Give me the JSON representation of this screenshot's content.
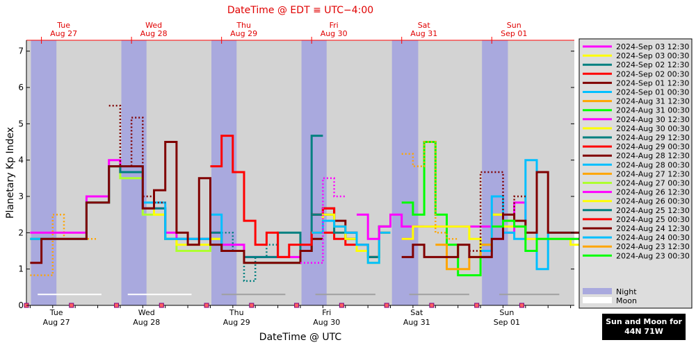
{
  "page": {
    "top_title": "DateTime @ EDT ≡ UTC−4:00",
    "x_axis_label": "DateTime @ UTC",
    "y_axis_label": "Planetary Kp Index",
    "location_box": {
      "line1": "Sun and Moon for",
      "line2": "44N 71W"
    }
  },
  "colors": {
    "background": "#d3d3d3",
    "night": "#a9a9de",
    "moon": "#ffffff",
    "top_axis": "#ff0000",
    "series": [
      "#ff00ff",
      "#ffff00",
      "#008080",
      "#ff0000",
      "#800000",
      "#00bfff",
      "#ffa500",
      "#00ff00",
      "#adff2f"
    ]
  },
  "chart_data": {
    "type": "line",
    "title": "DateTime @ EDT ≡ UTC−4:00",
    "xlabel": "DateTime @ UTC",
    "ylabel": "Planetary Kp Index",
    "x_unit": "hours since 2024-Aug 27 00:00 UTC",
    "xlim": [
      -4.0,
      142.0
    ],
    "ylim": [
      0,
      7.3
    ],
    "y_ticks": [
      0,
      1,
      2,
      3,
      4,
      5,
      6,
      7
    ],
    "grid": false,
    "top_axis_ticks": [
      {
        "x": 0,
        "day": "Tue",
        "date": "Aug 27"
      },
      {
        "x": 24,
        "day": "Wed",
        "date": "Aug 28"
      },
      {
        "x": 48,
        "day": "Thu",
        "date": "Aug 29"
      },
      {
        "x": 72,
        "day": "Fri",
        "date": "Aug 30"
      },
      {
        "x": 96,
        "day": "Sat",
        "date": "Aug 31"
      },
      {
        "x": 120,
        "day": "Sun",
        "date": "Sep 01"
      }
    ],
    "bottom_axis_ticks": [
      {
        "x": 4,
        "day": "Tue",
        "date": "Aug 27"
      },
      {
        "x": 28,
        "day": "Wed",
        "date": "Aug 28"
      },
      {
        "x": 52,
        "day": "Thu",
        "date": "Aug 29"
      },
      {
        "x": 76,
        "day": "Fri",
        "date": "Aug 30"
      },
      {
        "x": 100,
        "day": "Sat",
        "date": "Aug 31"
      },
      {
        "x": 124,
        "day": "Sun",
        "date": "Sep 01"
      }
    ],
    "night_bands": [
      [
        -2.8,
        4.0
      ],
      [
        21.3,
        28.0
      ],
      [
        45.3,
        52.0
      ],
      [
        69.3,
        76.0
      ],
      [
        93.4,
        100.4
      ],
      [
        117.4,
        124.3
      ]
    ],
    "moon_bars": [
      [
        -1.0,
        16.0
      ],
      [
        23.0,
        40.0
      ],
      [
        48.0,
        65.0
      ],
      [
        73.0,
        89.0
      ],
      [
        98.0,
        114.0
      ],
      [
        122.0,
        138.0
      ]
    ],
    "legend": [
      {
        "label": "2024-Sep 03 12:30",
        "color": "#ff00ff"
      },
      {
        "label": "2024-Sep 03 00:30",
        "color": "#ffff00"
      },
      {
        "label": "2024-Sep 02 12:30",
        "color": "#008080"
      },
      {
        "label": "2024-Sep 02 00:30",
        "color": "#ff0000"
      },
      {
        "label": "2024-Sep 01 12:30",
        "color": "#800000"
      },
      {
        "label": "2024-Sep 01 00:30",
        "color": "#00bfff"
      },
      {
        "label": "2024-Aug 31 12:30",
        "color": "#ffa500"
      },
      {
        "label": "2024-Aug 31 00:30",
        "color": "#00ff00"
      },
      {
        "label": "2024-Aug 30 12:30",
        "color": "#ff00ff"
      },
      {
        "label": "2024-Aug 30 00:30",
        "color": "#ffff00"
      },
      {
        "label": "2024-Aug 29 12:30",
        "color": "#008080"
      },
      {
        "label": "2024-Aug 29 00:30",
        "color": "#ff0000"
      },
      {
        "label": "2024-Aug 28 12:30",
        "color": "#800000"
      },
      {
        "label": "2024-Aug 28 00:30",
        "color": "#00bfff"
      },
      {
        "label": "2024-Aug 27 12:30",
        "color": "#ffa500"
      },
      {
        "label": "2024-Aug 27 00:30",
        "color": "#adff2f"
      },
      {
        "label": "2024-Aug 26 12:30",
        "color": "#ff00ff"
      },
      {
        "label": "2024-Aug 26 00:30",
        "color": "#ffff00"
      },
      {
        "label": "2024-Aug 25 12:30",
        "color": "#008080"
      },
      {
        "label": "2024-Aug 25 00:30",
        "color": "#ff0000"
      },
      {
        "label": "2024-Aug 24 12:30",
        "color": "#800000"
      },
      {
        "label": "2024-Aug 24 00:30",
        "color": "#00bfff"
      },
      {
        "label": "2024-Aug 23 12:30",
        "color": "#ffa500"
      },
      {
        "label": "2024-Aug 23 00:30",
        "color": "#00ff00"
      },
      {
        "label": "Night",
        "color": "#a9a9de"
      },
      {
        "label": "Moon",
        "color": "#ffffff"
      }
    ],
    "series": [
      {
        "color": "#ffa500",
        "dash": true,
        "x": [
          -3,
          3,
          6,
          12
        ],
        "y": [
          0.83,
          2.5,
          1.83,
          1.83
        ]
      },
      {
        "color": "#adff2f",
        "x": [
          -3,
          0,
          3,
          6,
          9,
          12,
          15,
          18,
          21,
          24,
          27,
          30,
          33,
          36,
          39,
          42,
          45,
          48,
          51,
          54,
          57,
          60,
          63,
          66,
          69,
          72
        ],
        "y": [
          1.83,
          1.83,
          1.83,
          1.83,
          1.83,
          2.83,
          2.83,
          3.83,
          3.5,
          3.5,
          2.5,
          2.5,
          1.83,
          1.5,
          1.5,
          1.5,
          1.83,
          1.5,
          1.5,
          1.17,
          1.17,
          1.17,
          1.17,
          1.17,
          1.5,
          1.83
        ]
      },
      {
        "color": "#ffff00",
        "x": [
          -3,
          0,
          3,
          6,
          9,
          12,
          15,
          18,
          21,
          24,
          27,
          30,
          33,
          36,
          39,
          42,
          45,
          48,
          51,
          54,
          57,
          60,
          63,
          66,
          69,
          72
        ],
        "y": [
          1.83,
          1.83,
          1.83,
          1.83,
          1.83,
          2.83,
          2.83,
          3.83,
          3.67,
          3.67,
          2.67,
          2.5,
          1.83,
          1.67,
          1.67,
          1.67,
          1.83,
          1.5,
          1.5,
          1.17,
          1.17,
          1.17,
          1.17,
          1.17,
          1.5,
          1.83
        ]
      },
      {
        "color": "#ff00ff",
        "x": [
          -3,
          0,
          3,
          6,
          9,
          12,
          15,
          18,
          21,
          24,
          27,
          30,
          33,
          36,
          39,
          42,
          45,
          48,
          51,
          54,
          57,
          60,
          63,
          66,
          69,
          72
        ],
        "y": [
          2.0,
          2.0,
          2.0,
          2.0,
          2.0,
          3.0,
          3.0,
          4.0,
          3.67,
          3.67,
          2.67,
          2.67,
          2.0,
          1.83,
          1.83,
          1.83,
          2.0,
          1.67,
          1.67,
          1.33,
          1.33,
          1.33,
          1.33,
          1.33,
          1.67,
          2.0
        ]
      },
      {
        "color": "#008080",
        "x": [
          -3,
          0,
          3,
          6,
          9,
          12,
          15,
          18,
          21,
          24,
          27,
          30,
          33,
          36,
          39,
          42,
          45,
          48,
          51,
          54,
          57,
          60,
          63,
          66,
          69,
          72
        ],
        "y": [
          1.83,
          1.83,
          1.83,
          1.83,
          1.83,
          2.83,
          2.83,
          3.83,
          3.67,
          3.67,
          2.67,
          2.67,
          1.83,
          1.83,
          1.83,
          1.83,
          2.0,
          1.5,
          1.5,
          1.33,
          1.33,
          1.33,
          2.0,
          2.0,
          1.5,
          4.67
        ]
      },
      {
        "color": "#008080",
        "dash": true,
        "x": [
          48,
          51,
          54,
          57,
          60
        ],
        "y": [
          2.0,
          1.5,
          0.67,
          1.33,
          1.67
        ]
      },
      {
        "color": "#00bfff",
        "x": [
          -3,
          0,
          3,
          6,
          9,
          12,
          15,
          18,
          21,
          24,
          27,
          30,
          33,
          36,
          39,
          42,
          45,
          48,
          51,
          54,
          57,
          60,
          63,
          66,
          69,
          72
        ],
        "y": [
          1.83,
          1.83,
          1.83,
          1.83,
          1.83,
          2.83,
          2.83,
          3.83,
          3.83,
          3.83,
          2.83,
          2.83,
          1.83,
          1.83,
          1.83,
          1.83,
          2.5,
          1.5,
          1.5,
          1.17,
          1.17,
          1.17,
          1.17,
          1.17,
          1.5,
          1.83
        ]
      },
      {
        "color": "#800000",
        "x": [
          -3,
          0,
          3,
          6,
          9,
          12,
          15,
          18,
          21,
          24,
          27,
          30,
          33,
          36,
          39,
          42,
          45,
          48,
          51,
          54,
          57,
          60,
          63,
          66,
          69,
          72
        ],
        "y": [
          1.17,
          1.83,
          1.83,
          1.83,
          1.83,
          2.83,
          2.83,
          3.83,
          3.83,
          3.83,
          2.67,
          3.17,
          4.5,
          2.0,
          1.67,
          3.5,
          1.67,
          1.5,
          1.5,
          1.17,
          1.17,
          1.17,
          1.17,
          1.17,
          1.5,
          1.83
        ]
      },
      {
        "color": "#800000",
        "dash": true,
        "x": [
          18,
          21,
          24,
          27,
          30
        ],
        "y": [
          5.5,
          3.83,
          5.17,
          3.0,
          2.83
        ]
      },
      {
        "color": "#ff0000",
        "x": [
          45,
          48,
          51,
          54,
          57,
          60,
          63,
          66,
          69,
          72,
          75,
          78,
          81,
          84
        ],
        "y": [
          3.83,
          4.67,
          3.67,
          2.33,
          1.67,
          2.0,
          1.33,
          1.67,
          1.67,
          2.0,
          2.0,
          1.83,
          1.67,
          1.5
        ]
      },
      {
        "color": "#800000",
        "x": [
          72,
          75,
          78,
          81,
          84,
          87,
          90
        ],
        "y": [
          2.5,
          2.67,
          2.33,
          2.0,
          1.67,
          1.33,
          2.0
        ]
      },
      {
        "color": "#ff0000",
        "x": [
          72,
          75,
          78,
          81,
          84,
          87,
          90
        ],
        "y": [
          2.5,
          2.67,
          2.17,
          1.83,
          1.5,
          1.33,
          2.17
        ]
      },
      {
        "color": "#008080",
        "x": [
          72,
          75,
          78,
          81,
          84,
          87,
          90
        ],
        "y": [
          2.5,
          2.5,
          2.0,
          1.83,
          1.5,
          1.33,
          2.17
        ]
      },
      {
        "color": "#ffff00",
        "x": [
          72,
          75,
          78,
          81,
          84,
          87,
          90
        ],
        "y": [
          2.0,
          2.5,
          2.17,
          1.83,
          1.5,
          1.17,
          2.0
        ]
      },
      {
        "color": "#00bfff",
        "x": [
          72,
          75,
          78,
          81,
          84,
          87,
          90
        ],
        "y": [
          2.0,
          2.33,
          2.17,
          2.0,
          1.67,
          1.17,
          2.0
        ]
      },
      {
        "color": "#ff00ff",
        "x": [
          84,
          87,
          90,
          93,
          96,
          99
        ],
        "y": [
          2.5,
          1.83,
          2.17,
          2.5,
          2.17,
          2.17
        ]
      },
      {
        "color": "#ff00ff",
        "dash": true,
        "x": [
          69,
          72,
          75,
          78
        ],
        "y": [
          1.17,
          1.17,
          3.5,
          3.0
        ]
      },
      {
        "color": "#00ff00",
        "x": [
          96,
          99,
          102,
          105,
          108,
          111,
          114,
          117
        ],
        "y": [
          2.83,
          2.5,
          4.5,
          2.5,
          1.67,
          0.83,
          0.83,
          1.67
        ]
      },
      {
        "color": "#ffa500",
        "dash": true,
        "x": [
          96,
          99,
          102,
          105,
          108
        ],
        "y": [
          4.17,
          3.83,
          4.5,
          2.0,
          1.83
        ]
      },
      {
        "color": "#ffa500",
        "x": [
          105,
          108,
          111,
          114,
          117,
          120,
          123
        ],
        "y": [
          1.67,
          1.0,
          1.0,
          1.33,
          1.67,
          2.5,
          2.33
        ]
      },
      {
        "color": "#800000",
        "x": [
          96,
          99,
          102,
          105,
          108,
          111,
          114,
          117
        ],
        "y": [
          1.33,
          1.67,
          1.33,
          1.33,
          1.33,
          1.67,
          1.33,
          1.33
        ]
      },
      {
        "color": "#ff00ff",
        "x": [
          96,
          99,
          102,
          105,
          108,
          111,
          114,
          117,
          120,
          123,
          126,
          129,
          132,
          135,
          138,
          141
        ],
        "y": [
          1.83,
          2.17,
          2.17,
          2.17,
          2.17,
          2.17,
          2.17,
          2.17,
          1.83,
          2.0,
          2.83,
          1.83,
          1.83,
          1.83,
          1.83,
          1.83
        ]
      },
      {
        "color": "#ffff00",
        "x": [
          96,
          99,
          102,
          105,
          108,
          111,
          114,
          117,
          120,
          123,
          126,
          129,
          132,
          135,
          138,
          141
        ],
        "y": [
          1.83,
          2.17,
          2.17,
          2.17,
          2.17,
          2.17,
          1.83,
          1.5,
          2.5,
          2.17,
          2.17,
          1.83,
          1.83,
          1.83,
          1.83,
          1.67
        ]
      },
      {
        "color": "#00bfff",
        "x": [
          117,
          120,
          123,
          126,
          129,
          132,
          135,
          138,
          141
        ],
        "y": [
          1.5,
          3.0,
          2.0,
          1.83,
          4.0,
          1.0,
          2.0,
          2.0,
          2.0
        ]
      },
      {
        "color": "#800000",
        "dash": true,
        "x": [
          114,
          117,
          120,
          123,
          126
        ],
        "y": [
          1.5,
          3.67,
          3.67,
          2.5,
          3.0
        ]
      },
      {
        "color": "#800000",
        "x": [
          117,
          120,
          123,
          126,
          129,
          132,
          135,
          138,
          141
        ],
        "y": [
          1.33,
          1.83,
          2.5,
          2.33,
          2.0,
          3.67,
          2.0,
          2.0,
          2.0
        ]
      },
      {
        "color": "#00ff00",
        "x": [
          120,
          123,
          126,
          129,
          132,
          135,
          138,
          141
        ],
        "y": [
          2.17,
          2.33,
          2.17,
          1.5,
          1.83,
          1.83,
          1.83,
          1.83
        ]
      }
    ]
  }
}
